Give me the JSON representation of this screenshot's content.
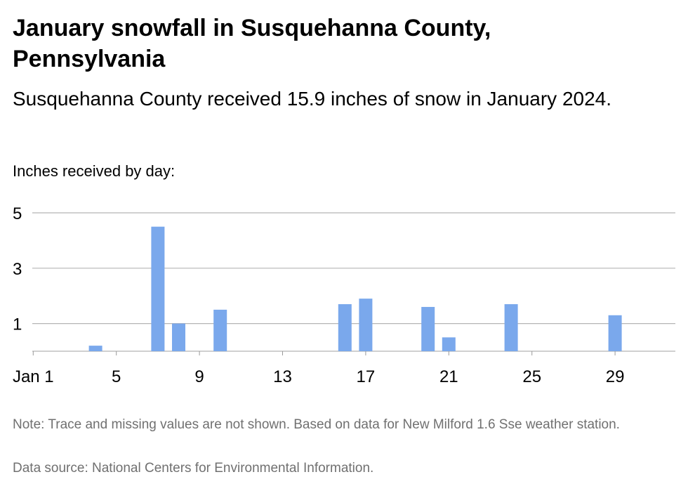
{
  "chart_data": {
    "type": "bar",
    "title": "January snowfall in Susquehanna County, Pennsylvania",
    "subtitle": "Susquehanna County received 15.9 inches of snow in January 2024.",
    "ylabel": "Inches received by day:",
    "xlabel": "",
    "x": [
      4,
      7,
      8,
      10,
      16,
      17,
      20,
      21,
      24,
      29
    ],
    "values": [
      0.2,
      4.5,
      1.0,
      1.5,
      1.7,
      1.9,
      1.6,
      0.5,
      1.7,
      1.3
    ],
    "x_ticks": [
      1,
      5,
      9,
      13,
      17,
      21,
      25,
      29
    ],
    "x_tick_labels": [
      "Jan 1",
      "5",
      "9",
      "13",
      "17",
      "21",
      "25",
      "29"
    ],
    "xlim": [
      0,
      31
    ],
    "y_ticks": [
      1,
      3,
      5
    ],
    "ylim": [
      0,
      5
    ],
    "grid": true,
    "bar_color": "#7aa8ec",
    "note": "Note: Trace and missing values are not shown. Based on data for New Milford 1.6 Sse weather station.",
    "source": "Data source: National Centers for Environmental Information."
  }
}
